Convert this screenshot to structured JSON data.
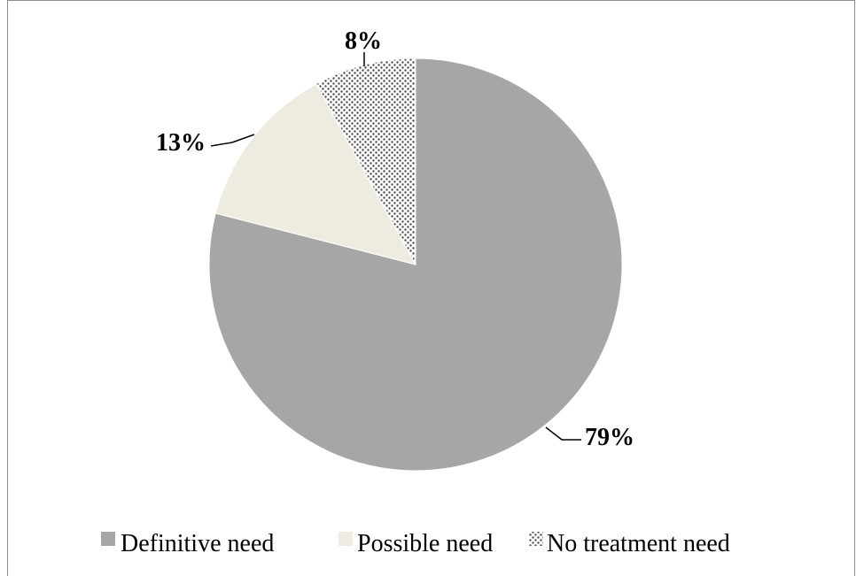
{
  "chart_data": {
    "type": "pie",
    "slices": [
      {
        "name": "Definitive need",
        "value": 79,
        "label": "79%",
        "color": "#a6a6a6",
        "pattern": "solid"
      },
      {
        "name": "Possible need",
        "value": 13,
        "label": "13%",
        "color": "#eeece1",
        "pattern": "solid"
      },
      {
        "name": "No treatment need",
        "value": 8,
        "label": "8%",
        "color": "#ffffff",
        "pattern": "dots"
      }
    ],
    "start_angle": "12 o'clock",
    "direction": "clockwise",
    "legend_position": "bottom"
  },
  "colors": {
    "frame_border": "#8c8c8c",
    "dot_pattern": "#4d4d4d"
  }
}
